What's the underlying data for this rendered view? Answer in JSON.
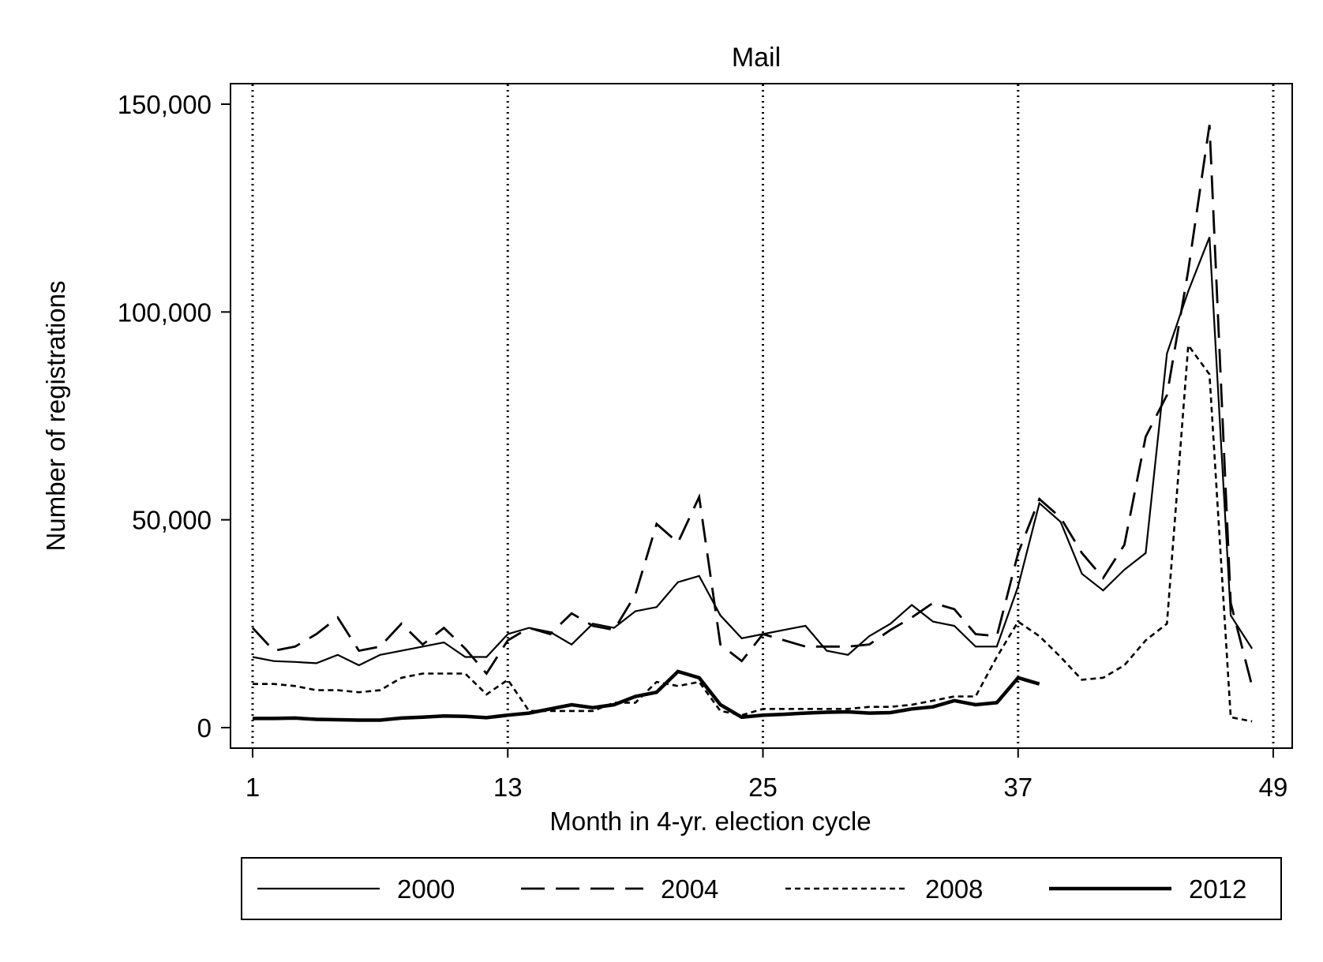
{
  "chart_data": {
    "type": "line",
    "title": "Mail",
    "xlabel": "Month in 4-yr. election cycle",
    "ylabel": "Number of registrations",
    "xlim": [
      1,
      49
    ],
    "ylim": [
      0,
      150000
    ],
    "x_ticks": [
      1,
      13,
      25,
      37,
      49
    ],
    "x_tick_labels": [
      "1",
      "13",
      "25",
      "37",
      "49"
    ],
    "y_ticks": [
      0,
      50000,
      100000,
      150000
    ],
    "y_tick_labels": [
      "0",
      "50,000",
      "100,000",
      "150,000"
    ],
    "reference_lines_x": [
      1,
      13,
      25,
      37,
      49
    ],
    "grid": false,
    "legend_position": "bottom",
    "series": [
      {
        "name": "2000",
        "style": "solid",
        "x": [
          1,
          2,
          3,
          4,
          5,
          6,
          7,
          8,
          9,
          10,
          11,
          12,
          13,
          14,
          15,
          16,
          17,
          18,
          19,
          20,
          21,
          22,
          23,
          24,
          25,
          26,
          27,
          28,
          29,
          30,
          31,
          32,
          33,
          34,
          35,
          36,
          37,
          38,
          39,
          40,
          41,
          42,
          43,
          44,
          45,
          46,
          47,
          48
        ],
        "values": [
          17000,
          16000,
          15800,
          15500,
          17500,
          15000,
          17500,
          18500,
          19500,
          20500,
          17000,
          17000,
          22500,
          24000,
          23000,
          20000,
          25000,
          24000,
          28000,
          29000,
          35000,
          36500,
          27000,
          21500,
          22500,
          23500,
          24500,
          18500,
          17500,
          22000,
          25000,
          29500,
          25500,
          24500,
          19500,
          19500,
          34000,
          54000,
          49500,
          37000,
          33000,
          38000,
          42000,
          90000,
          105000,
          118000,
          27000,
          19000
        ]
      },
      {
        "name": "2004",
        "style": "long-dash",
        "x": [
          1,
          2,
          3,
          4,
          5,
          6,
          7,
          8,
          9,
          10,
          11,
          12,
          13,
          14,
          15,
          16,
          17,
          18,
          19,
          20,
          21,
          22,
          23,
          24,
          25,
          26,
          27,
          28,
          29,
          30,
          31,
          32,
          33,
          34,
          35,
          36,
          37,
          38,
          39,
          40,
          41,
          42,
          43,
          44,
          45,
          46,
          47,
          48
        ],
        "values": [
          24000,
          18500,
          19500,
          22500,
          26500,
          18500,
          19500,
          25000,
          20000,
          24000,
          19000,
          13000,
          21000,
          24000,
          22500,
          27500,
          24500,
          23500,
          32000,
          49000,
          44500,
          55500,
          20000,
          16000,
          22500,
          21000,
          19500,
          19500,
          19500,
          20000,
          23500,
          26500,
          30000,
          28500,
          22500,
          22000,
          42000,
          55000,
          50500,
          42000,
          36000,
          44000,
          70000,
          80000,
          110000,
          145000,
          30000,
          10000
        ]
      },
      {
        "name": "2008",
        "style": "short-dash",
        "x": [
          1,
          2,
          3,
          4,
          5,
          6,
          7,
          8,
          9,
          10,
          11,
          12,
          13,
          14,
          15,
          16,
          17,
          18,
          19,
          20,
          21,
          22,
          23,
          24,
          25,
          26,
          27,
          28,
          29,
          30,
          31,
          32,
          33,
          34,
          35,
          36,
          37,
          38,
          39,
          40,
          41,
          42,
          43,
          44,
          45,
          46,
          47,
          48
        ],
        "values": [
          10500,
          10500,
          10000,
          9000,
          9000,
          8500,
          9000,
          12000,
          13000,
          13000,
          13000,
          8000,
          11500,
          4000,
          4000,
          4000,
          4000,
          6000,
          6000,
          11000,
          10000,
          11000,
          4000,
          3000,
          4500,
          4500,
          4500,
          4500,
          4500,
          5000,
          5000,
          5500,
          6500,
          7500,
          7500,
          17000,
          25500,
          22000,
          17000,
          11500,
          12000,
          15000,
          21000,
          25000,
          92000,
          85000,
          2500,
          1500
        ]
      },
      {
        "name": "2012",
        "style": "thick-solid",
        "x": [
          1,
          2,
          3,
          4,
          5,
          6,
          7,
          8,
          9,
          10,
          11,
          12,
          13,
          14,
          15,
          16,
          17,
          18,
          19,
          20,
          21,
          22,
          23,
          24,
          25,
          26,
          27,
          28,
          29,
          30,
          31,
          32,
          33,
          34,
          35,
          36,
          37,
          38
        ],
        "values": [
          2200,
          2200,
          2300,
          2000,
          1900,
          1800,
          1800,
          2300,
          2500,
          2800,
          2700,
          2400,
          3000,
          3500,
          4500,
          5500,
          4800,
          5500,
          7500,
          8500,
          13500,
          12000,
          5500,
          2500,
          3000,
          3200,
          3500,
          3700,
          3800,
          3500,
          3600,
          4500,
          5000,
          6500,
          5500,
          6000,
          12000,
          10500
        ]
      }
    ]
  }
}
